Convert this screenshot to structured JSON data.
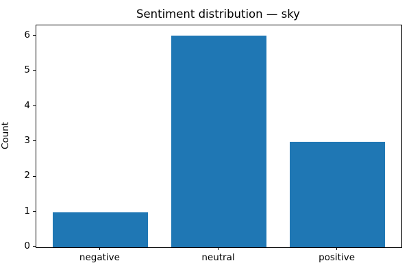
{
  "chart_data": {
    "type": "bar",
    "title": "Sentiment distribution — sky",
    "xlabel": "",
    "ylabel": "Count",
    "categories": [
      "negative",
      "neutral",
      "positive"
    ],
    "values": [
      1,
      6,
      3
    ],
    "yticks": [
      0,
      1,
      2,
      3,
      4,
      5,
      6
    ],
    "ylim": [
      0,
      6.3
    ],
    "xlim": [
      -0.54,
      2.54
    ],
    "bar_width_fraction": 0.8,
    "bar_color": "#1f77b4",
    "spine_color": "#000000",
    "background_color": "#ffffff",
    "grid": false,
    "legend": null
  }
}
